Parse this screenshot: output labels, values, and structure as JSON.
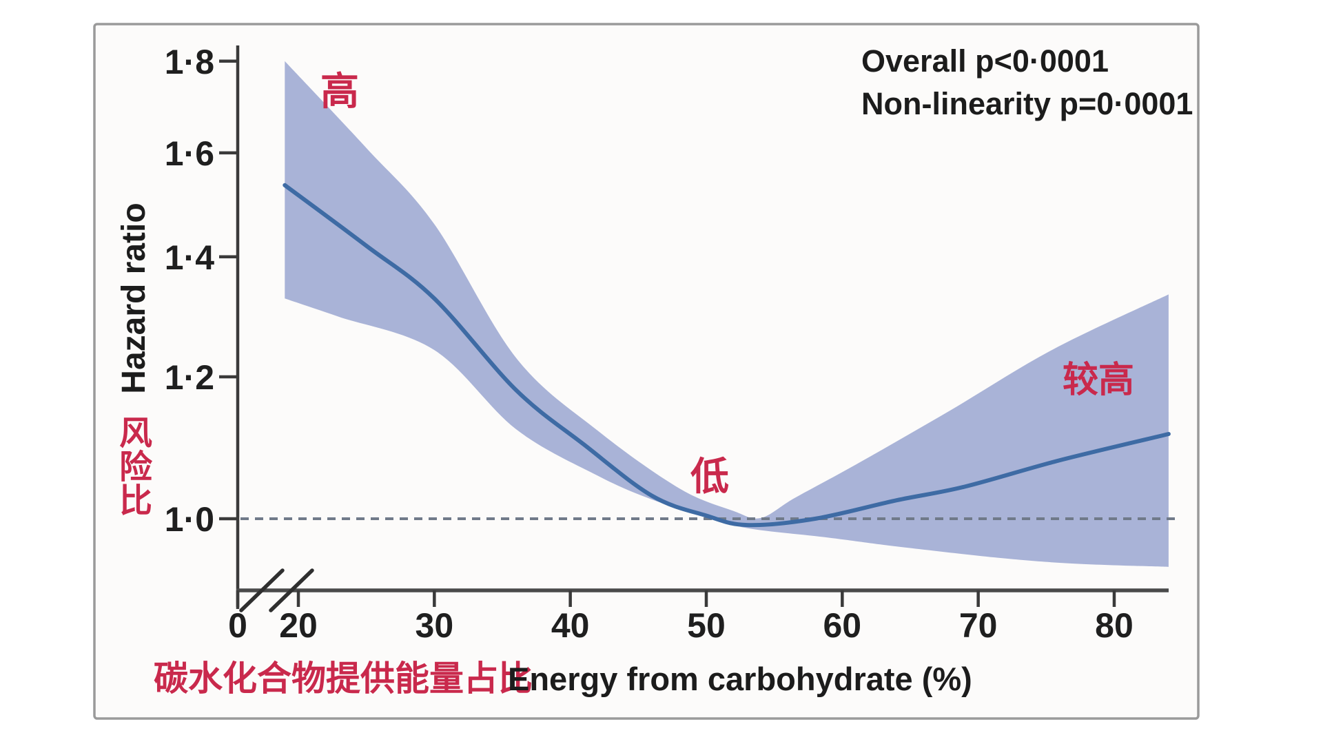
{
  "figure": {
    "frame": {
      "background": "#fcfbfa",
      "border_color": "#9a9a9a"
    },
    "stats": {
      "line1": "Overall p<0·0001",
      "line2": "Non-linearity p=0·0001"
    },
    "y_axis": {
      "label": "Hazard ratio",
      "label_zh": "风险比"
    },
    "x_axis": {
      "label_zh": "碳水化合物提供能量占比",
      "label_en": "Energy from carbohydrate (%)"
    },
    "annotations": {
      "high": "高",
      "low": "低",
      "relatively_high": "较高"
    },
    "colors": {
      "band": "#a9b3d7",
      "line": "#3e6ba4",
      "reference": "#707a89",
      "red_text": "#c9294c",
      "axis": "#3a3a3a"
    }
  },
  "chart_data": {
    "type": "line",
    "title": "",
    "xlabel": "Energy from carbohydrate (%)",
    "ylabel": "Hazard ratio",
    "y_scale": "log",
    "xlim": [
      0,
      84
    ],
    "ylim": [
      0.91,
      1.84
    ],
    "x_axis_break_between": [
      0,
      19
    ],
    "grid": false,
    "legend": "none",
    "reference_line_y": 1.0,
    "reference_line_style": "dashed",
    "x_ticks": [
      {
        "value": 0,
        "label": "0"
      },
      {
        "value": 20,
        "label": "20"
      },
      {
        "value": 30,
        "label": "30"
      },
      {
        "value": 40,
        "label": "40"
      },
      {
        "value": 50,
        "label": "50"
      },
      {
        "value": 60,
        "label": "60"
      },
      {
        "value": 70,
        "label": "70"
      },
      {
        "value": 80,
        "label": "80"
      }
    ],
    "y_ticks": [
      {
        "value": 1.8,
        "label": "1·8"
      },
      {
        "value": 1.6,
        "label": "1·6"
      },
      {
        "value": 1.4,
        "label": "1·4"
      },
      {
        "value": 1.2,
        "label": "1·2"
      },
      {
        "value": 1.0,
        "label": "1·0"
      }
    ],
    "series": [
      {
        "name": "Hazard ratio",
        "x": [
          19,
          25,
          30,
          36,
          41,
          46,
          50,
          53,
          58,
          64,
          69,
          76,
          84
        ],
        "hr": [
          1.535,
          1.42,
          1.327,
          1.18,
          1.1,
          1.03,
          1.004,
          0.992,
          1.0,
          1.024,
          1.042,
          1.078,
          1.115
        ]
      },
      {
        "name": "95% CI upper",
        "x": [
          19,
          25,
          30,
          36,
          42,
          48,
          52,
          54,
          56.5,
          61,
          68,
          75.5,
          84
        ],
        "hr": [
          1.8,
          1.61,
          1.46,
          1.23,
          1.12,
          1.04,
          1.01,
          1.001,
          1.027,
          1.072,
          1.15,
          1.243,
          1.334
        ]
      },
      {
        "name": "95% CI lower",
        "x": [
          19,
          23,
          30,
          36,
          42,
          46,
          50,
          53,
          59,
          64,
          71.5,
          77,
          84
        ],
        "hr": [
          1.327,
          1.296,
          1.242,
          1.122,
          1.057,
          1.025,
          1.003,
          0.988,
          0.976,
          0.965,
          0.951,
          0.944,
          0.94
        ]
      }
    ],
    "annotations": [
      {
        "text": "高",
        "x": 23,
        "hr": 1.73
      },
      {
        "text": "低",
        "x": 50,
        "hr": 1.055
      },
      {
        "text": "较高",
        "x": 79,
        "hr": 1.2
      }
    ],
    "stats": [
      "Overall p<0·0001",
      "Non-linearity p=0·0001"
    ]
  }
}
